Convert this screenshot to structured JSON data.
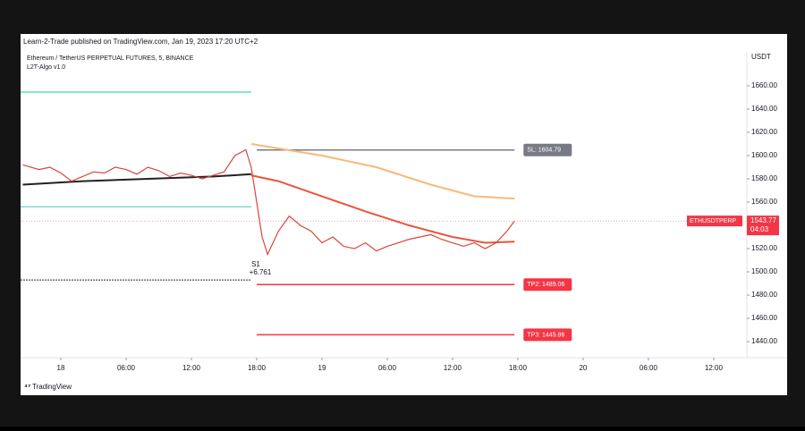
{
  "header": {
    "publisher": "Learn-2-Trade published on TradingView.com, Jan 19, 2023 17:20 UTC+2",
    "footer": "TradingView"
  },
  "chart_data": {
    "type": "line",
    "title": "Ethereum / TetherUS PERPETUAL FUTURES, 5, BINANCE",
    "subtitle": "L2T-Algo v1.0",
    "y_axis_label": "USDT",
    "xlim": [
      -3.7,
      63.05
    ],
    "ylim": [
      1426.2,
      1689.2
    ],
    "xticks": [
      {
        "value": 0,
        "label": "18"
      },
      {
        "value": 6,
        "label": "06:00"
      },
      {
        "value": 12,
        "label": "12:00"
      },
      {
        "value": 18,
        "label": "18:00"
      },
      {
        "value": 24,
        "label": "19"
      },
      {
        "value": 30,
        "label": "06:00"
      },
      {
        "value": 36,
        "label": "12:00"
      },
      {
        "value": 42,
        "label": "18:00"
      },
      {
        "value": 48,
        "label": "20"
      },
      {
        "value": 54,
        "label": "06:00"
      },
      {
        "value": 60,
        "label": "12:00"
      }
    ],
    "yticks": [
      {
        "value": 1440,
        "label": "1440.00"
      },
      {
        "value": 1460,
        "label": "1460.00"
      },
      {
        "value": 1480,
        "label": "1480.00"
      },
      {
        "value": 1500,
        "label": "1500.00"
      },
      {
        "value": 1520,
        "label": "1520.00"
      },
      {
        "value": 1560,
        "label": "1560.00"
      },
      {
        "value": 1580,
        "label": "1580.00"
      },
      {
        "value": 1600,
        "label": "1600.00"
      },
      {
        "value": 1620,
        "label": "1620.00"
      },
      {
        "value": 1640,
        "label": "1640.00"
      },
      {
        "value": 1660,
        "label": "1660.00"
      }
    ],
    "series": [
      {
        "color": "#f7b97a",
        "x": [
          17.5,
          24,
          29,
          34,
          38,
          41.7
        ],
        "values": [
          1610,
          1600,
          1590,
          1575,
          1565,
          1563
        ]
      },
      {
        "color": "#222222",
        "x": [
          -3.5,
          2,
          8,
          14,
          17.5
        ],
        "values": [
          1575,
          1578,
          1580,
          1582,
          1584
        ]
      },
      {
        "color": "#e8553e",
        "x": [
          17.5,
          20,
          24,
          28,
          32,
          36,
          39,
          41.7
        ],
        "values": [
          1583,
          1578,
          1565,
          1552,
          1540,
          1530,
          1525,
          1526
        ]
      },
      {
        "color": "#d9453a",
        "x": [
          -3.5,
          -2,
          -1,
          0,
          1,
          2,
          3,
          4,
          5,
          6,
          7,
          8,
          9,
          10,
          11,
          12,
          13,
          14,
          15,
          16,
          17,
          17.5,
          18,
          18.5,
          19,
          20,
          21,
          22,
          23,
          24,
          25,
          26,
          27,
          28,
          29,
          30,
          31,
          32,
          33,
          34,
          35,
          36,
          37,
          38,
          39,
          40,
          41,
          41.7
        ],
        "values": [
          1592,
          1588,
          1590,
          1585,
          1578,
          1582,
          1586,
          1585,
          1590,
          1588,
          1584,
          1590,
          1587,
          1582,
          1585,
          1583,
          1580,
          1583,
          1586,
          1600,
          1605,
          1590,
          1560,
          1530,
          1515,
          1535,
          1548,
          1540,
          1535,
          1525,
          1530,
          1522,
          1520,
          1525,
          1518,
          1522,
          1525,
          1528,
          1530,
          1532,
          1528,
          1525,
          1522,
          1525,
          1520,
          1525,
          1535,
          1543.77
        ]
      }
    ],
    "levels": [
      {
        "value": 1654.6,
        "color": "#3fd9a6",
        "from": -3.7,
        "to": 17.5
      },
      {
        "value": 1556,
        "color": "#5ccdc0",
        "from": -3.7,
        "to": 17.5
      },
      {
        "value": 1493,
        "color": "#555555",
        "from": -3.7,
        "to": 17.5
      },
      {
        "value": 1604.79,
        "color": "#787b86",
        "from": 18,
        "to": 41.7,
        "label": "SL: 1604.79"
      },
      {
        "value": 1489.06,
        "color": "#f23645",
        "from": 18,
        "to": 41.7,
        "label": "TP2: 1489.06"
      },
      {
        "value": 1445.86,
        "color": "#f23645",
        "from": 18,
        "to": 41.7,
        "label": "TP3: 1445.86"
      }
    ],
    "last_price": {
      "symbol": "ETHUSDTPERP",
      "value": 1543.77,
      "countdown": "04:03"
    },
    "signal": {
      "label": "S1",
      "text": "+6.761"
    }
  }
}
